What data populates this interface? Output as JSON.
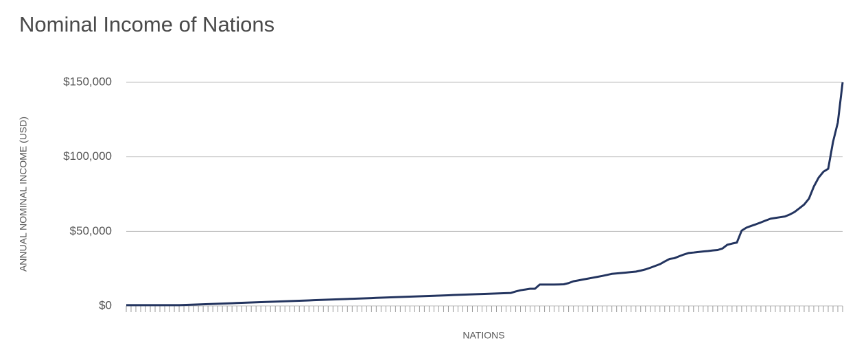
{
  "chart_data": {
    "type": "line",
    "title": "Nominal Income of Nations",
    "x_label": "NATIONS",
    "y_label": "ANNUAL NOMINAL INCOME (USD)",
    "categories": [
      null,
      null,
      null,
      null,
      null,
      null,
      null,
      null,
      null,
      null,
      null,
      null,
      null,
      null,
      null,
      null,
      null,
      null,
      null,
      null,
      null,
      null,
      null,
      null,
      null,
      null,
      null,
      null,
      null,
      null,
      null,
      null,
      null,
      null,
      null,
      null,
      null,
      null,
      null,
      null,
      null,
      null,
      null,
      null,
      null,
      null,
      null,
      null,
      null,
      null,
      null,
      null,
      null,
      null,
      null,
      null,
      null,
      null,
      null,
      null,
      null,
      null,
      null,
      null,
      null,
      null,
      null,
      null,
      null,
      null,
      null,
      null,
      null,
      null,
      null,
      null,
      null,
      null,
      null,
      null,
      null,
      null,
      null,
      null,
      null,
      null,
      null,
      null,
      null,
      null,
      null,
      null,
      null,
      null,
      null,
      null,
      null,
      null,
      null,
      null,
      null,
      null,
      null,
      null,
      null,
      null,
      null,
      null,
      null,
      null,
      null,
      null,
      null,
      null,
      null,
      null,
      null,
      null,
      null,
      null,
      null,
      null,
      null,
      null,
      null,
      null,
      null,
      null,
      null,
      null,
      null,
      null,
      null,
      null,
      null,
      null,
      null,
      null,
      null,
      null,
      null,
      null,
      null,
      null,
      null,
      null,
      null,
      null,
      null,
      null
    ],
    "series": [
      {
        "color": "#23345f",
        "values": [
          500,
          500,
          500,
          500,
          500,
          500,
          500,
          500,
          500,
          500,
          500,
          500,
          620,
          740,
          860,
          980,
          1100,
          1210,
          1330,
          1450,
          1570,
          1690,
          1810,
          1930,
          2050,
          2170,
          2290,
          2400,
          2520,
          2640,
          2760,
          2880,
          3000,
          3120,
          3240,
          3360,
          3470,
          3590,
          3710,
          3830,
          3950,
          4070,
          4190,
          4310,
          4430,
          4550,
          4660,
          4780,
          4900,
          5020,
          5140,
          5260,
          5380,
          5500,
          5620,
          5740,
          5850,
          5970,
          6090,
          6210,
          6330,
          6450,
          6570,
          6690,
          6810,
          6930,
          7040,
          7160,
          7280,
          7400,
          7520,
          7640,
          7760,
          7880,
          8000,
          8120,
          8230,
          8350,
          8470,
          8590,
          8700,
          9700,
          10500,
          11000,
          11500,
          11500,
          14300,
          14300,
          14300,
          14300,
          14400,
          14500,
          15300,
          16500,
          17100,
          17700,
          18300,
          18900,
          19500,
          20100,
          20800,
          21500,
          21800,
          22100,
          22400,
          22700,
          23000,
          23700,
          24500,
          25600,
          26800,
          28000,
          29800,
          31500,
          32000,
          33300,
          34500,
          35500,
          35800,
          36200,
          36500,
          36800,
          37200,
          37500,
          38500,
          41000,
          41800,
          42500,
          50500,
          52500,
          53700,
          54800,
          56000,
          57300,
          58500,
          59000,
          59500,
          60000,
          61300,
          63000,
          65500,
          68000,
          72000,
          80000,
          86000,
          90000,
          92000,
          110000,
          123000,
          150000
        ]
      }
    ],
    "ylim": [
      0,
      150000
    ],
    "yticks": [
      {
        "value": 0,
        "label": "$0"
      },
      {
        "value": 50000,
        "label": "$50,000"
      },
      {
        "value": 100000,
        "label": "$100,000"
      },
      {
        "value": 150000,
        "label": "$150,000"
      }
    ],
    "grid": true
  }
}
